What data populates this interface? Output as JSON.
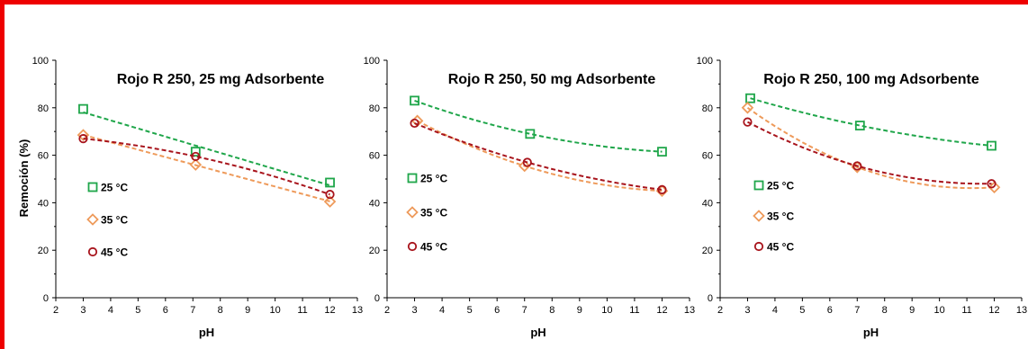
{
  "colors": {
    "25": "#1fa64a",
    "35": "#ee9a5a",
    "45": "#a8141c",
    "frame": "#ee0000"
  },
  "ylabel": "Remoción (%)",
  "chart_data": [
    {
      "type": "scatter",
      "title": "Rojo R 250, 25 mg Adsorbente",
      "xlabel": "pH",
      "xlim": [
        2,
        13
      ],
      "ylim": [
        0,
        100
      ],
      "xticks": [
        2,
        3,
        4,
        5,
        6,
        7,
        8,
        9,
        10,
        11,
        12,
        13
      ],
      "yticks": [
        0,
        20,
        40,
        60,
        80,
        100
      ],
      "series": [
        {
          "name": "25 °C",
          "marker": "square",
          "trend": "linear",
          "x": [
            3,
            7.1,
            12
          ],
          "y": [
            79.5,
            61.5,
            48.5
          ]
        },
        {
          "name": "35 °C",
          "marker": "diamond",
          "trend": "linear",
          "x": [
            3,
            7.1,
            12
          ],
          "y": [
            68.5,
            56,
            40.5
          ]
        },
        {
          "name": "45 °C",
          "marker": "circle",
          "trend": "poly",
          "x": [
            3,
            7.1,
            12
          ],
          "y": [
            67,
            59.5,
            43.5
          ]
        }
      ]
    },
    {
      "type": "scatter",
      "title": "Rojo R 250, 50 mg Adsorbente",
      "xlabel": "pH",
      "xlim": [
        2,
        13
      ],
      "ylim": [
        0,
        100
      ],
      "xticks": [
        2,
        3,
        4,
        5,
        6,
        7,
        8,
        9,
        10,
        11,
        12,
        13
      ],
      "yticks": [
        0,
        20,
        40,
        60,
        80,
        100
      ],
      "series": [
        {
          "name": "25 °C",
          "marker": "square",
          "trend": "poly",
          "x": [
            3,
            7.2,
            12
          ],
          "y": [
            83,
            69,
            61.5
          ]
        },
        {
          "name": "35 °C",
          "marker": "diamond",
          "trend": "poly",
          "x": [
            3.1,
            7,
            12
          ],
          "y": [
            74.5,
            55.5,
            45
          ]
        },
        {
          "name": "45 °C",
          "marker": "circle",
          "trend": "poly",
          "x": [
            3,
            7.1,
            12
          ],
          "y": [
            73.5,
            57,
            45.5
          ]
        }
      ]
    },
    {
      "type": "scatter",
      "title": "Rojo R 250, 100 mg Adsorbente",
      "xlabel": "pH",
      "xlim": [
        2,
        13
      ],
      "ylim": [
        0,
        100
      ],
      "xticks": [
        2,
        3,
        4,
        5,
        6,
        7,
        8,
        9,
        10,
        11,
        12,
        13
      ],
      "yticks": [
        0,
        20,
        40,
        60,
        80,
        100
      ],
      "series": [
        {
          "name": "25 °C",
          "marker": "square",
          "trend": "poly",
          "x": [
            3.1,
            7.1,
            11.9
          ],
          "y": [
            84,
            72.5,
            64
          ]
        },
        {
          "name": "35 °C",
          "marker": "diamond",
          "trend": "poly",
          "x": [
            3,
            7,
            12
          ],
          "y": [
            80,
            55,
            46.5
          ]
        },
        {
          "name": "45 °C",
          "marker": "circle",
          "trend": "poly",
          "x": [
            3,
            7,
            11.9
          ],
          "y": [
            74,
            55.5,
            48
          ]
        }
      ]
    }
  ]
}
